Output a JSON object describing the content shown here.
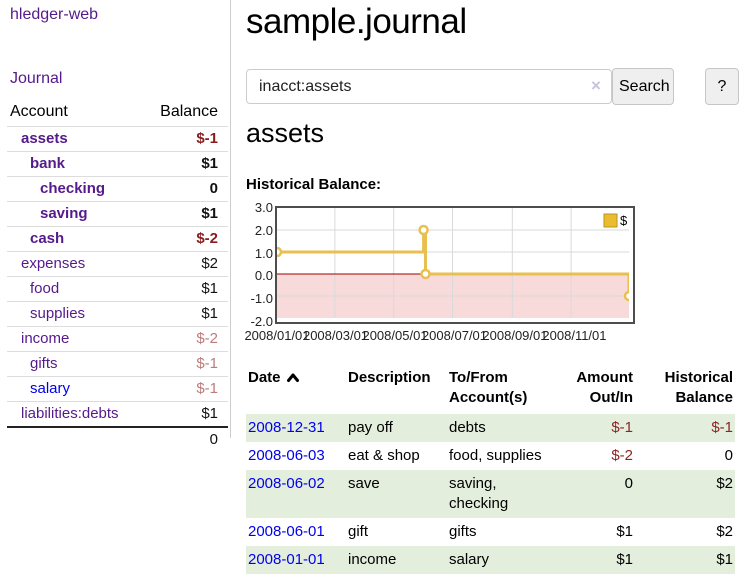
{
  "sidebar": {
    "brand": "hledger-web",
    "nav": {
      "journal": "Journal"
    },
    "table": {
      "headers": {
        "account": "Account",
        "balance": "Balance"
      },
      "rows": [
        {
          "account": "assets",
          "balance": "$-1",
          "level": 0,
          "bold": true,
          "blue": false
        },
        {
          "account": "bank",
          "balance": "$1",
          "level": 1,
          "bold": true,
          "blue": false
        },
        {
          "account": "checking",
          "balance": "0",
          "level": 2,
          "bold": true,
          "blue": false
        },
        {
          "account": "saving",
          "balance": "$1",
          "level": 2,
          "bold": true,
          "blue": false
        },
        {
          "account": "cash",
          "balance": "$-2",
          "level": 1,
          "bold": true,
          "blue": false
        },
        {
          "account": "expenses",
          "balance": "$2",
          "level": 0,
          "bold": false,
          "blue": false
        },
        {
          "account": "food",
          "balance": "$1",
          "level": 1,
          "bold": false,
          "blue": false
        },
        {
          "account": "supplies",
          "balance": "$1",
          "level": 1,
          "bold": false,
          "blue": false
        },
        {
          "account": "income",
          "balance": "$-2",
          "level": 0,
          "bold": false,
          "blue": false
        },
        {
          "account": "gifts",
          "balance": "$-1",
          "level": 1,
          "bold": false,
          "blue": false
        },
        {
          "account": "salary",
          "balance": "$-1",
          "level": 1,
          "bold": false,
          "blue": true
        },
        {
          "account": "liabilities:debts",
          "balance": "$1",
          "level": 0,
          "bold": false,
          "blue": false
        }
      ],
      "total": "0"
    }
  },
  "header": {
    "title": "sample.journal"
  },
  "search": {
    "value": "inacct:assets",
    "clear_icon": "×",
    "button_label": "Search",
    "help_label": "?"
  },
  "account_page": {
    "heading": "assets",
    "chart_label": "Historical Balance:"
  },
  "chart_data": {
    "type": "line",
    "title": "Historical Balance",
    "step": "after",
    "legend_label": "$",
    "legend_position": "top-right",
    "x": [
      "2008-01-01",
      "2008-06-01",
      "2008-06-03",
      "2008-12-31"
    ],
    "y": [
      1,
      2,
      0,
      -1
    ],
    "xlim": [
      "2008-01-01",
      "2008-12-31"
    ],
    "ylim": [
      -2,
      3
    ],
    "yticks": [
      3,
      2,
      1,
      0,
      -1,
      -2
    ],
    "xticks": [
      "2008/01/01",
      "2008/03/01",
      "2008/05/01",
      "2008/07/01",
      "2008/09/01",
      "2008/11/01"
    ],
    "grid": true,
    "colors": {
      "line": "#e7c04f",
      "marker_fill": "#ffffff",
      "negative_fill": "#f9dada",
      "zero_line": "#990000",
      "grid_line": "#d9d9d9",
      "plot_border": "#4d4d4d",
      "legend_fill": "#eabc2f",
      "legend_stroke": "#ba941f"
    }
  },
  "register": {
    "headers": {
      "date": "Date",
      "description": "Description",
      "tofrom": "To/From Account(s)",
      "amount": "Amount Out/In",
      "historical": "Historical Balance"
    },
    "rows": [
      {
        "date": "2008-12-31",
        "description": "pay off",
        "accounts": [
          "debts"
        ],
        "amount": "$-1",
        "balance": "$-1"
      },
      {
        "date": "2008-06-03",
        "description": "eat & shop",
        "accounts": [
          "food",
          "supplies"
        ],
        "amount": "$-2",
        "balance": "0"
      },
      {
        "date": "2008-06-02",
        "description": "save",
        "accounts": [
          "saving",
          "checking"
        ],
        "amount": "0",
        "balance": "$2"
      },
      {
        "date": "2008-06-01",
        "description": "gift",
        "accounts": [
          "gifts"
        ],
        "amount": "$1",
        "balance": "$2"
      },
      {
        "date": "2008-01-01",
        "description": "income",
        "accounts": [
          "salary"
        ],
        "amount": "$1",
        "balance": "$1"
      }
    ]
  }
}
